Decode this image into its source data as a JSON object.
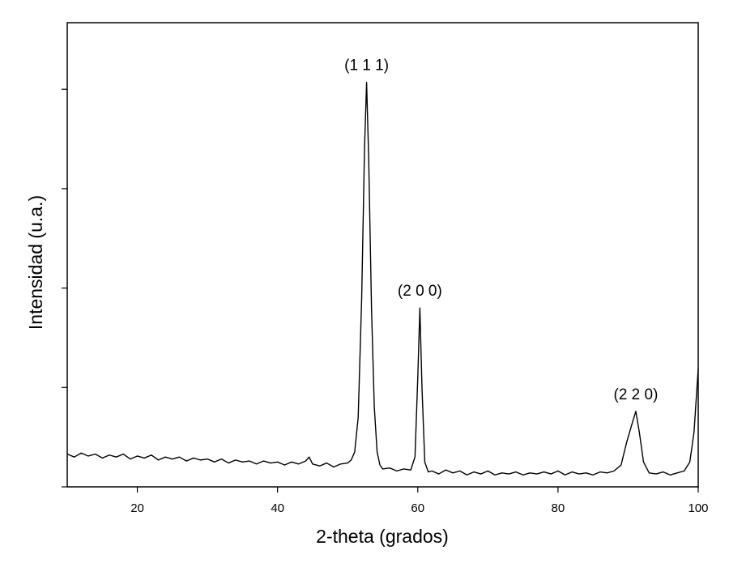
{
  "chart_data": {
    "type": "line",
    "x_label": "2-theta (grados)",
    "y_label": "Intensidad (u.a.)",
    "xlim": [
      10,
      100
    ],
    "xticks": [
      20,
      40,
      60,
      80,
      100
    ],
    "ylim": [
      0,
      4.67
    ],
    "yticks": [
      0,
      1,
      2,
      3,
      4
    ],
    "ytick_labels": false,
    "grid": false,
    "series": [
      {
        "color": "#000000",
        "x": [
          10,
          11,
          12,
          13,
          14,
          15,
          16,
          17,
          18,
          19,
          20,
          21,
          22,
          23,
          24,
          25,
          26,
          27,
          28,
          29,
          30,
          31,
          32,
          33,
          34,
          35,
          36,
          37,
          38,
          39,
          40,
          41,
          42,
          43,
          44,
          44.5,
          45,
          46,
          47,
          48,
          49,
          50,
          50.5,
          51,
          51.5,
          52,
          52.4,
          52.7,
          53,
          53.4,
          53.8,
          54.2,
          54.6,
          55,
          56,
          57,
          58,
          59,
          59.6,
          60,
          60.3,
          60.6,
          61,
          61.5,
          62,
          63,
          64,
          65,
          66,
          67,
          68,
          69,
          70,
          71,
          72,
          73,
          74,
          75,
          76,
          77,
          78,
          79,
          80,
          81,
          82,
          83,
          84,
          85,
          86,
          87,
          88,
          89,
          89.8,
          90.5,
          91.1,
          91.6,
          92.2,
          93,
          94,
          95,
          96,
          97,
          98,
          98.8,
          99.4,
          100
        ],
        "values": [
          0.33,
          0.3,
          0.34,
          0.31,
          0.33,
          0.29,
          0.32,
          0.3,
          0.33,
          0.28,
          0.31,
          0.29,
          0.32,
          0.27,
          0.3,
          0.28,
          0.3,
          0.26,
          0.29,
          0.27,
          0.28,
          0.25,
          0.28,
          0.24,
          0.27,
          0.25,
          0.26,
          0.23,
          0.26,
          0.24,
          0.25,
          0.22,
          0.25,
          0.23,
          0.26,
          0.3,
          0.23,
          0.21,
          0.24,
          0.2,
          0.23,
          0.24,
          0.27,
          0.35,
          0.7,
          1.9,
          3.4,
          4.07,
          3.3,
          1.8,
          0.8,
          0.35,
          0.22,
          0.18,
          0.19,
          0.16,
          0.18,
          0.17,
          0.3,
          1.1,
          1.8,
          1.0,
          0.25,
          0.15,
          0.16,
          0.13,
          0.17,
          0.14,
          0.16,
          0.12,
          0.15,
          0.13,
          0.16,
          0.12,
          0.14,
          0.13,
          0.15,
          0.12,
          0.14,
          0.13,
          0.15,
          0.13,
          0.16,
          0.12,
          0.15,
          0.13,
          0.14,
          0.12,
          0.15,
          0.14,
          0.16,
          0.22,
          0.45,
          0.62,
          0.76,
          0.55,
          0.25,
          0.14,
          0.13,
          0.15,
          0.12,
          0.14,
          0.16,
          0.25,
          0.55,
          1.19
        ]
      }
    ],
    "annotations": [
      {
        "text": "(1 1 1)",
        "x": 52.7,
        "y": 4.07
      },
      {
        "text": "(2 0 0)",
        "x": 60.3,
        "y": 1.8
      },
      {
        "text": "(2 2 0)",
        "x": 91.1,
        "y": 0.76
      }
    ]
  }
}
